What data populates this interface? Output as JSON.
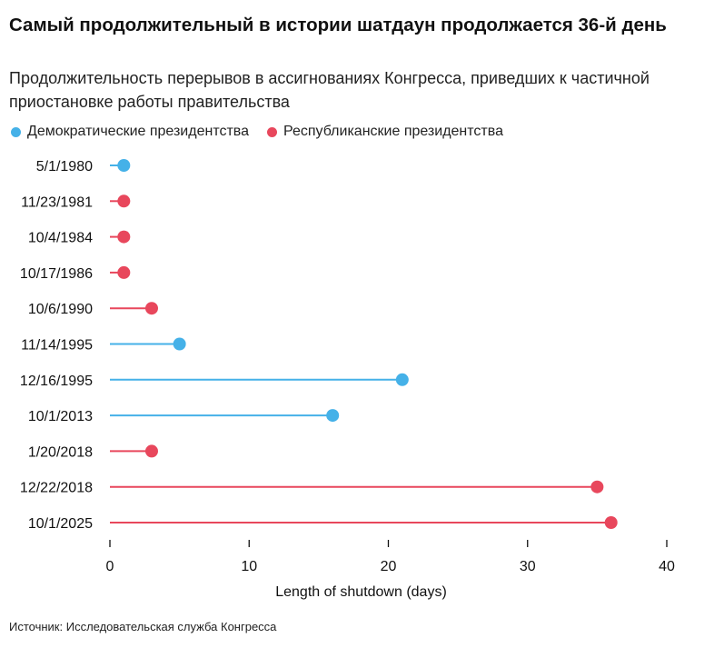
{
  "title": "Самый продолжительный в истории шатдаун продолжается 36-й день",
  "subtitle": "Продолжительность перерывов в ассигнованиях Конгресса, приведших к частичной приостановке работы правительства",
  "legend": {
    "democratic": "Демократические президентства",
    "republican": "Республиканские президентства"
  },
  "colors": {
    "democratic": "#45b1e8",
    "republican": "#e8475c",
    "axis": "#111111"
  },
  "source": "Источник: Исследовательская служба Конгресса",
  "chart_data": {
    "type": "lollipop",
    "title": "Самый продолжительный в истории шатдаун продолжается 36-й день",
    "xlabel": "Length of shutdown (days)",
    "ylabel": "",
    "xlim": [
      0,
      40
    ],
    "xticks": [
      0,
      10,
      20,
      30,
      40
    ],
    "grid": false,
    "legend_position": "top-left",
    "categories": [
      "5/1/1980",
      "11/23/1981",
      "10/4/1984",
      "10/17/1986",
      "10/6/1990",
      "11/14/1995",
      "12/16/1995",
      "10/1/2013",
      "1/20/2018",
      "12/22/2018",
      "10/1/2025"
    ],
    "values": [
      1,
      1,
      1,
      1,
      3,
      5,
      21,
      16,
      3,
      35,
      36
    ],
    "party": [
      "democratic",
      "republican",
      "republican",
      "republican",
      "republican",
      "democratic",
      "democratic",
      "democratic",
      "republican",
      "republican",
      "republican"
    ]
  }
}
